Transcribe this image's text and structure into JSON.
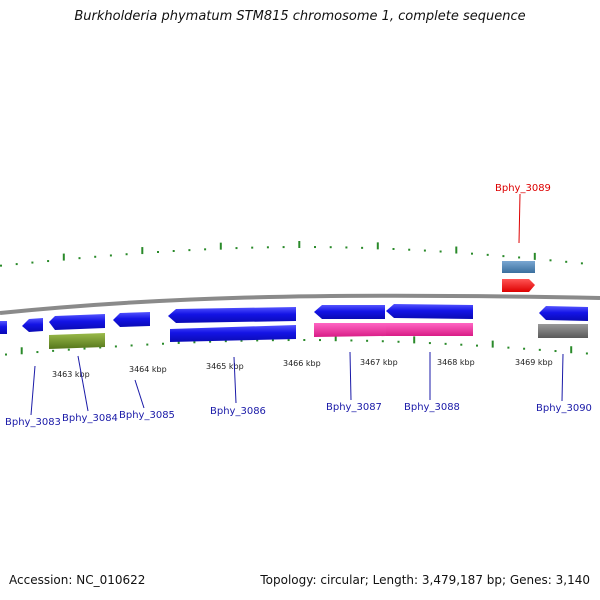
{
  "title": "Burkholderia phymatum STM815 chromosome 1, complete sequence",
  "footer": {
    "accession": "Accession: NC_010622",
    "summary": "Topology: circular; Length: 3,479,187 bp; Genes: 3,140"
  },
  "colors": {
    "forward_cds": "#1010e0",
    "reverse_cds": "#1010e0",
    "highlight_gene_label": "#dd0000",
    "gene_label": "#1a1aa8",
    "backbone": "#808080",
    "tick": "#2a8a2a",
    "olive_feature": "#6b8e23",
    "pink_feature": "#ee2299",
    "grey_feature": "#707070",
    "steelblue_feature": "#4682b4",
    "red_feature": "#ff0000"
  },
  "kbp_labels": [
    "3463 kbp",
    "3464 kbp",
    "3465 kbp",
    "3466 kbp",
    "3467 kbp",
    "3468 kbp",
    "3469 kbp"
  ],
  "genes": [
    {
      "label": "Bphy_3083",
      "highlight": false
    },
    {
      "label": "Bphy_3084",
      "highlight": false
    },
    {
      "label": "Bphy_3085",
      "highlight": false
    },
    {
      "label": "Bphy_3086",
      "highlight": false
    },
    {
      "label": "Bphy_3087",
      "highlight": false
    },
    {
      "label": "Bphy_3088",
      "highlight": false
    },
    {
      "label": "Bphy_3089",
      "highlight": true
    },
    {
      "label": "Bphy_3090",
      "highlight": false
    }
  ]
}
